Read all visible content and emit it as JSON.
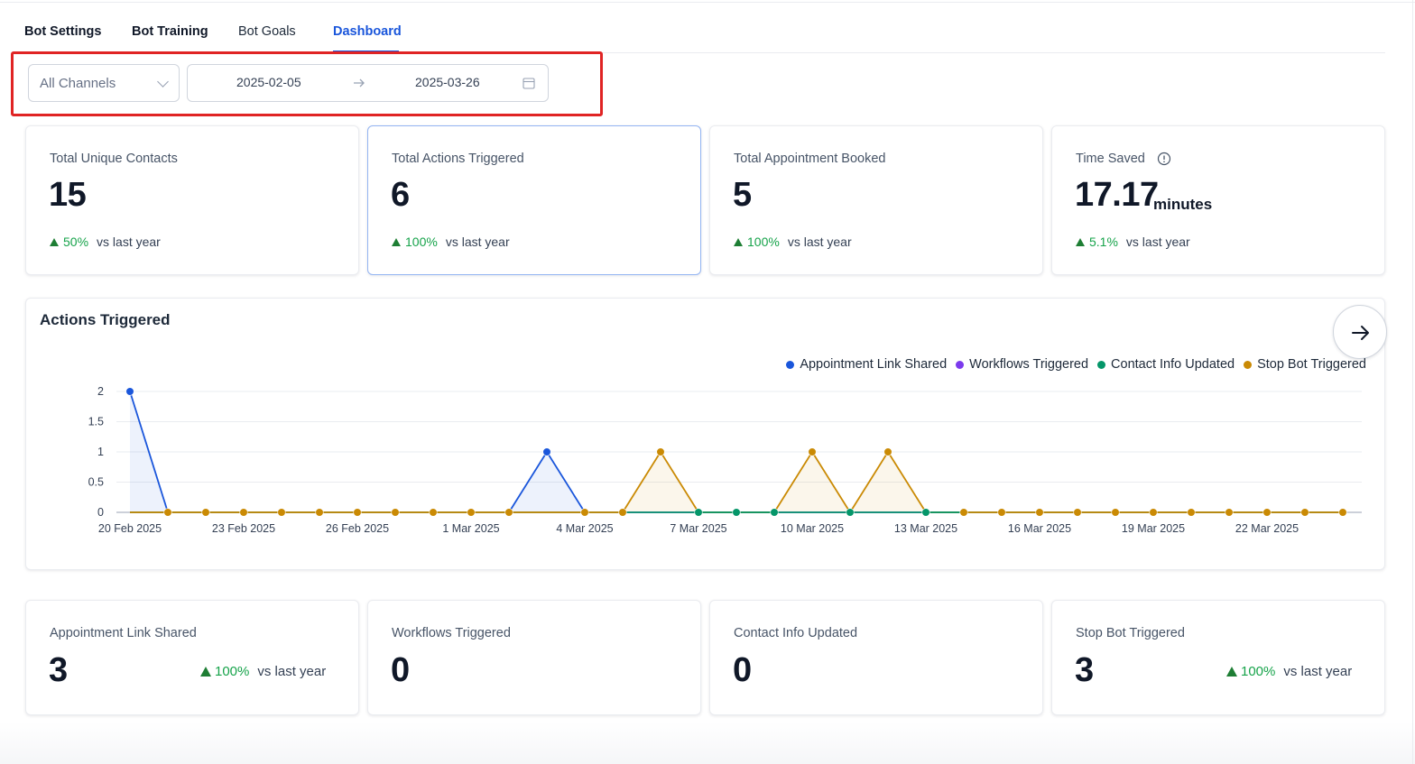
{
  "tabs": [
    {
      "label": "Bot Settings",
      "active": false
    },
    {
      "label": "Bot Training",
      "active": false
    },
    {
      "label": "Bot Goals",
      "active": false
    },
    {
      "label": "Dashboard",
      "active": true
    }
  ],
  "filters": {
    "channel": "All Channels",
    "date_start": "2025-02-05",
    "date_end": "2025-03-26"
  },
  "kpis": [
    {
      "label": "Total Unique Contacts",
      "value": "15",
      "unit": "",
      "trend_pct": "50%",
      "trend_text": "vs last year"
    },
    {
      "label": "Total Actions Triggered",
      "value": "6",
      "unit": "",
      "trend_pct": "100%",
      "trend_text": "vs last year"
    },
    {
      "label": "Total Appointment Booked",
      "value": "5",
      "unit": "",
      "trend_pct": "100%",
      "trend_text": "vs last year"
    },
    {
      "label": "Time Saved",
      "value": "17.17",
      "unit": "minutes",
      "trend_pct": "5.1%",
      "trend_text": "vs last year"
    }
  ],
  "actions_chart": {
    "title": "Actions Triggered"
  },
  "chart_data": {
    "type": "line",
    "title": "Actions Triggered",
    "xlabel": "",
    "ylabel": "",
    "ylim": [
      0,
      2
    ],
    "y_ticks": [
      "0",
      "0.5",
      "1",
      "1.5",
      "2"
    ],
    "x_tick_labels": [
      "20 Feb 2025",
      "23 Feb 2025",
      "26 Feb 2025",
      "1 Mar 2025",
      "4 Mar 2025",
      "7 Mar 2025",
      "10 Mar 2025",
      "13 Mar 2025",
      "16 Mar 2025",
      "19 Mar 2025",
      "22 Mar 2025"
    ],
    "x_start": "20 Feb 2025",
    "x_end": "24 Mar 2025",
    "grid": true,
    "legend_position": "top-right",
    "series": [
      {
        "name": "Appointment Link Shared",
        "color": "#1a56db",
        "values": [
          2,
          0,
          0,
          0,
          0,
          0,
          0,
          0,
          0,
          0,
          0,
          1,
          0,
          0,
          0,
          0,
          0,
          0,
          0,
          0,
          0,
          0,
          0,
          0,
          0,
          0,
          0,
          0,
          0,
          0,
          0,
          0,
          0
        ]
      },
      {
        "name": "Workflows Triggered",
        "color": "#7c3aed",
        "values": [
          0,
          0,
          0,
          0,
          0,
          0,
          0,
          0,
          0,
          0,
          0,
          0,
          0,
          0,
          0,
          0,
          0,
          0,
          0,
          0,
          0,
          0,
          0,
          0,
          0,
          0,
          0,
          0,
          0,
          0,
          0,
          0,
          0
        ]
      },
      {
        "name": "Contact Info Updated",
        "color": "#059669",
        "values": [
          0,
          0,
          0,
          0,
          0,
          0,
          0,
          0,
          0,
          0,
          0,
          0,
          0,
          0,
          0,
          0,
          0,
          0,
          0,
          0,
          0,
          0,
          0,
          0,
          0,
          0,
          0,
          0,
          0,
          0,
          0,
          0,
          0
        ]
      },
      {
        "name": "Stop Bot Triggered",
        "color": "#ca8a04",
        "values": [
          0,
          0,
          0,
          0,
          0,
          0,
          0,
          0,
          0,
          0,
          0,
          0,
          0,
          0,
          1,
          0,
          0,
          0,
          1,
          0,
          1,
          0,
          0,
          0,
          0,
          0,
          0,
          0,
          0,
          0,
          0,
          0,
          0
        ]
      }
    ]
  },
  "summary": [
    {
      "label": "Appointment Link Shared",
      "value": "3",
      "trend_pct": "100%",
      "trend_text": "vs last year"
    },
    {
      "label": "Workflows Triggered",
      "value": "0",
      "trend_pct": "",
      "trend_text": ""
    },
    {
      "label": "Contact Info Updated",
      "value": "0",
      "trend_pct": "",
      "trend_text": ""
    },
    {
      "label": "Stop Bot Triggered",
      "value": "3",
      "trend_pct": "100%",
      "trend_text": "vs last year"
    }
  ],
  "icons": {
    "channel_dropdown": "chevron-down-icon",
    "range_separator": "arrow-right-icon",
    "calendar": "calendar-icon",
    "info": "info-icon",
    "chart_next": "arrow-right-icon",
    "trend": "trend-up-icon"
  },
  "colors": {
    "accent": "#1a56db",
    "positive": "#16a34a",
    "highlight": "#e02424"
  }
}
